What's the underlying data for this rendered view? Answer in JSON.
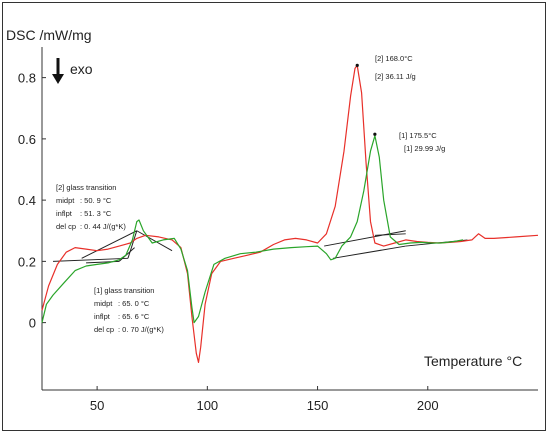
{
  "chart_data": {
    "type": "line",
    "ylabel": "DSC /mW/mg",
    "xlabel": "Temperature °C",
    "exo_label": "exo",
    "xlim": [
      25,
      250
    ],
    "ylim": [
      -0.22,
      0.9
    ],
    "x_ticks": [
      50,
      100,
      150,
      200
    ],
    "y_ticks": [
      0,
      0.2,
      0.4,
      0.6,
      0.8
    ],
    "y_tick_labels": [
      "0",
      "0.2",
      "0.4",
      "0.6",
      "0.8"
    ],
    "colors": {
      "red": "#e8302a",
      "green": "#2aa52a",
      "baseline": "#222222"
    },
    "series": [
      {
        "color": "red",
        "points": [
          [
            25,
            0.04
          ],
          [
            28,
            0.12
          ],
          [
            32,
            0.19
          ],
          [
            36,
            0.23
          ],
          [
            40,
            0.245
          ],
          [
            45,
            0.24
          ],
          [
            50,
            0.235
          ],
          [
            55,
            0.24
          ],
          [
            60,
            0.25
          ],
          [
            65,
            0.26
          ],
          [
            68,
            0.275
          ],
          [
            72,
            0.285
          ],
          [
            78,
            0.28
          ],
          [
            84,
            0.27
          ],
          [
            88,
            0.245
          ],
          [
            91,
            0.16
          ],
          [
            93,
            0.02
          ],
          [
            95,
            -0.1
          ],
          [
            96,
            -0.13
          ],
          [
            97,
            -0.08
          ],
          [
            99,
            0.06
          ],
          [
            102,
            0.16
          ],
          [
            106,
            0.2
          ],
          [
            112,
            0.21
          ],
          [
            118,
            0.22
          ],
          [
            124,
            0.23
          ],
          [
            130,
            0.255
          ],
          [
            135,
            0.27
          ],
          [
            140,
            0.275
          ],
          [
            145,
            0.27
          ],
          [
            150,
            0.26
          ],
          [
            154,
            0.29
          ],
          [
            158,
            0.38
          ],
          [
            162,
            0.56
          ],
          [
            165,
            0.74
          ],
          [
            167,
            0.83
          ],
          [
            168,
            0.84
          ],
          [
            170,
            0.75
          ],
          [
            172,
            0.52
          ],
          [
            174,
            0.33
          ],
          [
            176,
            0.26
          ],
          [
            180,
            0.25
          ],
          [
            185,
            0.26
          ],
          [
            190,
            0.27
          ],
          [
            195,
            0.265
          ],
          [
            200,
            0.262
          ],
          [
            205,
            0.26
          ],
          [
            210,
            0.262
          ],
          [
            215,
            0.265
          ],
          [
            220,
            0.27
          ],
          [
            223,
            0.29
          ],
          [
            226,
            0.275
          ],
          [
            230,
            0.275
          ],
          [
            240,
            0.28
          ],
          [
            250,
            0.285
          ]
        ]
      },
      {
        "color": "green",
        "points": [
          [
            25,
            0.0
          ],
          [
            27,
            0.06
          ],
          [
            30,
            0.09
          ],
          [
            35,
            0.13
          ],
          [
            40,
            0.17
          ],
          [
            45,
            0.185
          ],
          [
            50,
            0.19
          ],
          [
            55,
            0.195
          ],
          [
            60,
            0.205
          ],
          [
            63,
            0.22
          ],
          [
            66,
            0.27
          ],
          [
            68,
            0.33
          ],
          [
            69,
            0.335
          ],
          [
            71,
            0.3
          ],
          [
            75,
            0.26
          ],
          [
            80,
            0.27
          ],
          [
            85,
            0.275
          ],
          [
            88,
            0.24
          ],
          [
            91,
            0.17
          ],
          [
            93,
            0.05
          ],
          [
            94,
            0.0
          ],
          [
            96,
            0.02
          ],
          [
            99,
            0.1
          ],
          [
            103,
            0.19
          ],
          [
            108,
            0.21
          ],
          [
            115,
            0.225
          ],
          [
            122,
            0.23
          ],
          [
            130,
            0.24
          ],
          [
            138,
            0.245
          ],
          [
            145,
            0.248
          ],
          [
            150,
            0.25
          ],
          [
            154,
            0.225
          ],
          [
            156,
            0.205
          ],
          [
            158,
            0.21
          ],
          [
            161,
            0.25
          ],
          [
            165,
            0.28
          ],
          [
            168,
            0.33
          ],
          [
            171,
            0.43
          ],
          [
            174,
            0.56
          ],
          [
            176,
            0.61
          ],
          [
            178,
            0.54
          ],
          [
            180,
            0.4
          ],
          [
            183,
            0.28
          ],
          [
            187,
            0.255
          ],
          [
            192,
            0.26
          ],
          [
            197,
            0.262
          ],
          [
            202,
            0.26
          ],
          [
            206,
            0.26
          ],
          [
            212,
            0.265
          ],
          [
            216,
            0.27
          ]
        ]
      }
    ],
    "baselines": [
      [
        [
          30,
          0.2
        ],
        [
          64,
          0.21
        ]
      ],
      [
        [
          43,
          0.21
        ],
        [
          68,
          0.3
        ]
      ],
      [
        [
          64,
          0.21
        ],
        [
          68,
          0.3
        ]
      ],
      [
        [
          68,
          0.3
        ],
        [
          84,
          0.235
        ]
      ],
      [
        [
          45,
          0.195
        ],
        [
          60,
          0.2
        ]
      ],
      [
        [
          60,
          0.2
        ],
        [
          67,
          0.245
        ]
      ],
      [
        [
          153,
          0.25
        ],
        [
          190,
          0.3
        ]
      ],
      [
        [
          157,
          0.21
        ],
        [
          190,
          0.25
        ]
      ],
      [
        [
          190,
          0.25
        ],
        [
          218,
          0.27
        ]
      ],
      [
        [
          176,
          0.285
        ],
        [
          190,
          0.29
        ]
      ]
    ],
    "peak_markers": [
      [
        168,
        0.84
      ],
      [
        176,
        0.615
      ]
    ],
    "annotations": {
      "peak2_temp": "[2] 168.0°C",
      "peak2_area": "[2] 36.11 J/g",
      "peak1_temp": "[1] 175.5°C",
      "peak1_area": "[1] 29.99 J/g",
      "gt2_title": "[2] glass transition",
      "gt2_midpt_label": "midpt",
      "gt2_midpt_value": ":  50. 9 °C",
      "gt2_inflpt_label": "inflpt",
      "gt2_inflpt_value": ":  51. 3 °C",
      "gt2_delcp_label": "del cp",
      "gt2_delcp_value": ":   0. 44 J/(g*K)",
      "gt1_title": "[1] glass transition",
      "gt1_midpt_label": "midpt",
      "gt1_midpt_value": ":  65. 0 °C",
      "gt1_inflpt_label": "inflpt",
      "gt1_inflpt_value": ":  65. 6 °C",
      "gt1_delcp_label": "del cp",
      "gt1_delcp_value": ":   0. 70 J/(g*K)"
    }
  }
}
